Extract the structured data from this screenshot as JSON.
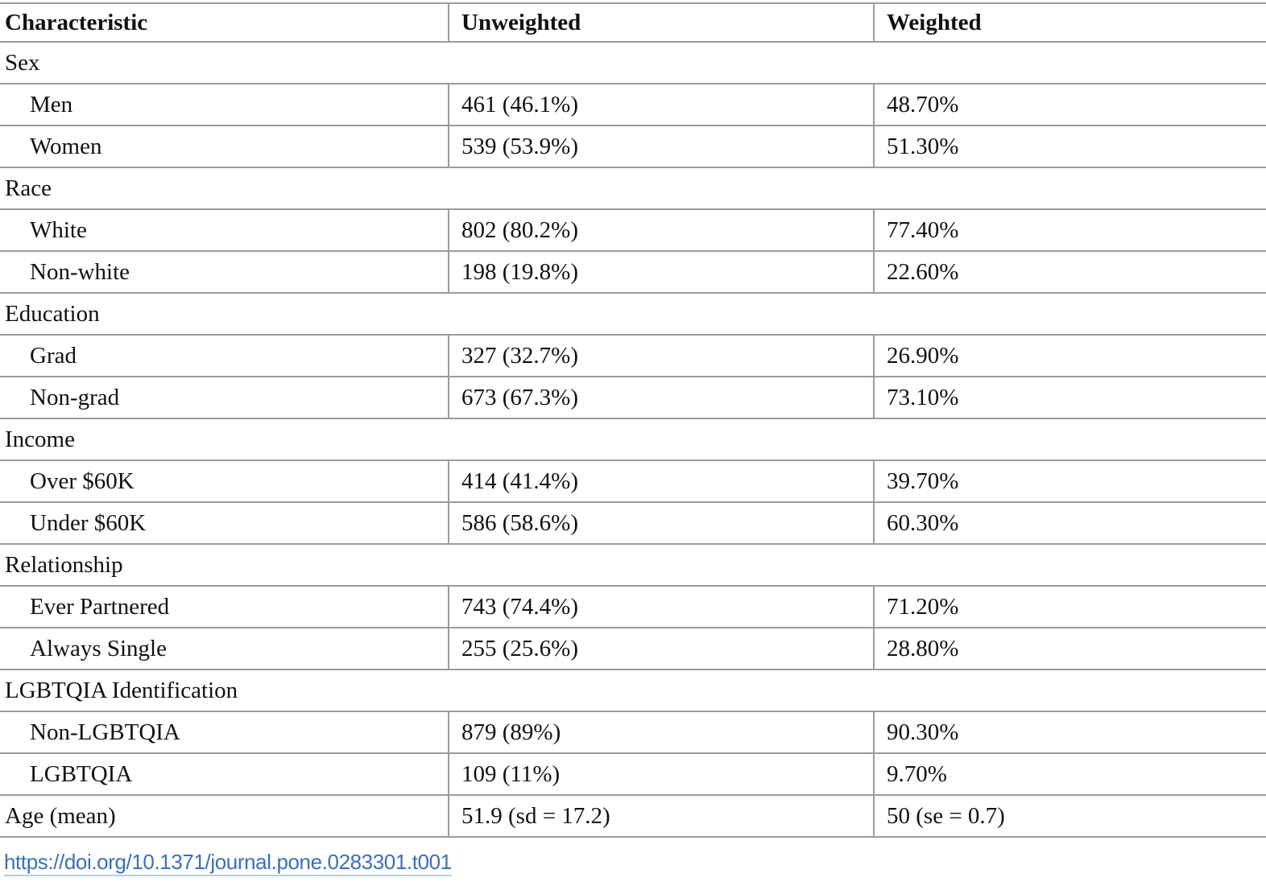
{
  "colors": {
    "border": "#989da3",
    "link": "#3a70b9",
    "link_underline": "#b9cbe3",
    "text": "#111111"
  },
  "table": {
    "columns": [
      "Characteristic",
      "Unweighted",
      "Weighted"
    ],
    "rows": [
      {
        "type": "group",
        "label": "Sex"
      },
      {
        "type": "item",
        "indent": true,
        "label": "Men",
        "unweighted": "461 (46.1%)",
        "weighted": "48.70%"
      },
      {
        "type": "item",
        "indent": true,
        "label": "Women",
        "unweighted": "539 (53.9%)",
        "weighted": "51.30%"
      },
      {
        "type": "group",
        "label": "Race"
      },
      {
        "type": "item",
        "indent": true,
        "label": "White",
        "unweighted": "802 (80.2%)",
        "weighted": "77.40%"
      },
      {
        "type": "item",
        "indent": true,
        "label": "Non-white",
        "unweighted": "198 (19.8%)",
        "weighted": "22.60%"
      },
      {
        "type": "group",
        "label": "Education"
      },
      {
        "type": "item",
        "indent": true,
        "label": "Grad",
        "unweighted": "327 (32.7%)",
        "weighted": "26.90%"
      },
      {
        "type": "item",
        "indent": true,
        "label": "Non-grad",
        "unweighted": "673 (67.3%)",
        "weighted": "73.10%"
      },
      {
        "type": "group",
        "label": "Income"
      },
      {
        "type": "item",
        "indent": true,
        "label": "Over $60K",
        "unweighted": "414 (41.4%)",
        "weighted": "39.70%"
      },
      {
        "type": "item",
        "indent": true,
        "label": "Under $60K",
        "unweighted": "586 (58.6%)",
        "weighted": "60.30%"
      },
      {
        "type": "group",
        "label": "Relationship"
      },
      {
        "type": "item",
        "indent": true,
        "label": "Ever Partnered",
        "unweighted": "743 (74.4%)",
        "weighted": "71.20%"
      },
      {
        "type": "item",
        "indent": true,
        "label": "Always Single",
        "unweighted": "255 (25.6%)",
        "weighted": "28.80%"
      },
      {
        "type": "group",
        "label": "LGBTQIA Identification"
      },
      {
        "type": "item",
        "indent": true,
        "label": "Non-LGBTQIA",
        "unweighted": "879 (89%)",
        "weighted": "90.30%"
      },
      {
        "type": "item",
        "indent": true,
        "label": "LGBTQIA",
        "unweighted": "109 (11%)",
        "weighted": "9.70%"
      },
      {
        "type": "item",
        "indent": false,
        "label": "Age (mean)",
        "unweighted": "51.9 (sd = 17.2)",
        "weighted": "50 (se = 0.7)"
      }
    ]
  },
  "footer": {
    "doi": "https://doi.org/10.1371/journal.pone.0283301.t001"
  }
}
